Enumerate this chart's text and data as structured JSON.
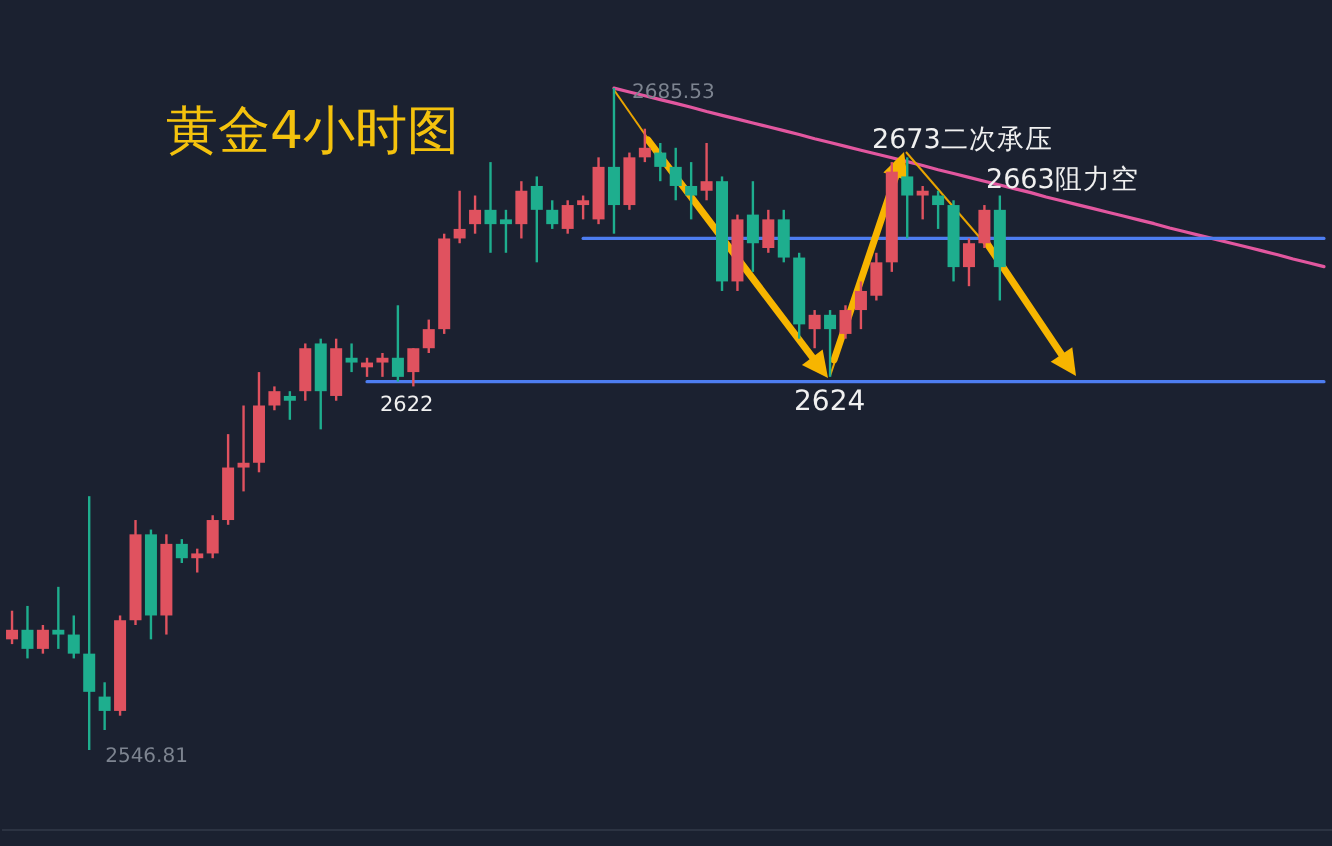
{
  "chart_data": {
    "type": "candlestick",
    "title": "黄金4小时图",
    "categories": [
      null,
      null,
      null,
      null,
      null,
      null,
      null,
      null,
      null,
      null,
      null,
      null,
      null,
      null,
      null,
      null,
      null,
      null,
      null,
      null,
      null,
      null,
      null,
      null,
      null,
      null,
      null,
      null,
      null,
      null,
      null,
      null,
      null,
      null,
      null,
      null,
      null,
      null,
      null,
      null,
      null,
      null,
      null,
      null,
      null,
      null,
      null,
      null,
      null,
      null,
      null,
      null,
      null,
      null,
      null,
      null,
      null,
      null,
      null,
      null,
      null,
      null,
      null,
      null,
      null,
      null,
      null,
      null,
      null,
      null,
      null,
      null,
      null,
      null,
      null,
      null,
      null,
      null,
      null,
      null,
      null,
      null,
      null,
      null,
      null,
      null
    ],
    "ohlc": [
      [
        2570,
        2576,
        2569,
        2572
      ],
      [
        2572,
        2577,
        2566,
        2568
      ],
      [
        2568,
        2573,
        2567,
        2572
      ],
      [
        2572,
        2581,
        2568,
        2571
      ],
      [
        2571,
        2575,
        2566,
        2567
      ],
      [
        2567,
        2600,
        2546.81,
        2559
      ],
      [
        2558,
        2561,
        2551,
        2555
      ],
      [
        2555,
        2575,
        2554,
        2574
      ],
      [
        2574,
        2595,
        2573,
        2592
      ],
      [
        2592,
        2593,
        2570,
        2575
      ],
      [
        2575,
        2592,
        2571,
        2590
      ],
      [
        2590,
        2591,
        2586,
        2587
      ],
      [
        2587,
        2589,
        2584,
        2588
      ],
      [
        2588,
        2596,
        2587,
        2595
      ],
      [
        2595,
        2613,
        2594,
        2606
      ],
      [
        2606,
        2619,
        2601,
        2607
      ],
      [
        2607,
        2626,
        2605,
        2619
      ],
      [
        2619,
        2623,
        2618,
        2622
      ],
      [
        2621,
        2622,
        2616,
        2620
      ],
      [
        2622,
        2632,
        2620,
        2631
      ],
      [
        2632,
        2633,
        2614,
        2622
      ],
      [
        2621,
        2633,
        2620,
        2631
      ],
      [
        2629,
        2632,
        2626,
        2628
      ],
      [
        2627,
        2629,
        2625,
        2628
      ],
      [
        2628,
        2630,
        2625,
        2629
      ],
      [
        2629,
        2640,
        2624,
        2625
      ],
      [
        2626,
        2631,
        2623,
        2631
      ],
      [
        2631,
        2637,
        2630,
        2635
      ],
      [
        2635,
        2655,
        2634,
        2654
      ],
      [
        2654,
        2664,
        2653,
        2656
      ],
      [
        2657,
        2663,
        2655,
        2660
      ],
      [
        2660,
        2670,
        2651,
        2657
      ],
      [
        2658,
        2660,
        2651,
        2657
      ],
      [
        2657,
        2666,
        2654,
        2664
      ],
      [
        2665,
        2667,
        2649,
        2660
      ],
      [
        2660,
        2662,
        2656,
        2657
      ],
      [
        2656,
        2662,
        2655,
        2661
      ],
      [
        2661,
        2663,
        2658,
        2662
      ],
      [
        2658,
        2671,
        2657,
        2669
      ],
      [
        2669,
        2685.53,
        2655,
        2661
      ],
      [
        2661,
        2672,
        2660,
        2671
      ],
      [
        2671,
        2677,
        2670,
        2673
      ],
      [
        2672,
        2674,
        2666,
        2669
      ],
      [
        2669,
        2673,
        2662,
        2665
      ],
      [
        2665,
        2670,
        2658,
        2663
      ],
      [
        2664,
        2674,
        2662,
        2666
      ],
      [
        2666,
        2667,
        2643,
        2645
      ],
      [
        2645,
        2659,
        2643,
        2658
      ],
      [
        2659,
        2666,
        2647,
        2653
      ],
      [
        2652,
        2660,
        2651,
        2658
      ],
      [
        2658,
        2660,
        2649,
        2650
      ],
      [
        2650,
        2651,
        2633,
        2636
      ],
      [
        2635,
        2639,
        2631,
        2638
      ],
      [
        2638,
        2639,
        2625,
        2635
      ],
      [
        2634,
        2640,
        2633,
        2639
      ],
      [
        2639,
        2645,
        2635,
        2643
      ],
      [
        2642,
        2651,
        2641,
        2649
      ],
      [
        2649,
        2670,
        2647,
        2668
      ],
      [
        2667,
        2671,
        2654,
        2663
      ],
      [
        2663,
        2665,
        2658,
        2664
      ],
      [
        2663,
        2664,
        2656,
        2661
      ],
      [
        2661,
        2662,
        2645,
        2648
      ],
      [
        2648,
        2654,
        2644,
        2653
      ],
      [
        2653,
        2661,
        2652,
        2660
      ],
      [
        2660,
        2663,
        2641,
        2648
      ],
      null,
      null,
      null,
      null,
      null,
      null,
      null,
      null,
      null,
      null,
      null,
      null,
      null,
      null,
      null,
      null,
      null,
      null,
      null,
      null,
      null
    ],
    "colors": [
      "#e0525f",
      "#1eae8e",
      "#e0525f",
      "#1eae8e",
      "#1eae8e",
      "#1eae8e",
      "#1eae8e",
      "#e0525f",
      "#e0525f",
      "#1eae8e",
      "#e0525f",
      "#1eae8e",
      "#e0525f",
      "#e0525f",
      "#e0525f",
      "#e0525f",
      "#e0525f",
      "#e0525f",
      "#1eae8e",
      "#e0525f",
      "#1eae8e",
      "#e0525f",
      "#1eae8e",
      "#e0525f",
      "#e0525f",
      "#1eae8e",
      "#e0525f",
      "#e0525f",
      "#e0525f",
      "#e0525f",
      "#e0525f",
      "#1eae8e",
      "#1eae8e",
      "#e0525f",
      "#1eae8e",
      "#1eae8e",
      "#e0525f",
      "#e0525f",
      "#e0525f",
      "#1eae8e",
      "#e0525f",
      "#e0525f",
      "#1eae8e",
      "#1eae8e",
      "#1eae8e",
      "#e0525f",
      "#1eae8e",
      "#e0525f",
      "#1eae8e",
      "#e0525f",
      "#1eae8e",
      "#1eae8e",
      "#e0525f",
      "#1eae8e",
      "#e0525f",
      "#e0525f",
      "#e0525f",
      "#e0525f",
      "#1eae8e",
      "#e0525f",
      "#1eae8e",
      "#1eae8e",
      "#e0525f",
      "#e0525f",
      "#1eae8e",
      null,
      null,
      null,
      null,
      null,
      null,
      null,
      null,
      null,
      null,
      null,
      null,
      null,
      null,
      null,
      null,
      null,
      null,
      null,
      null,
      null
    ],
    "series": [
      {
        "type": "line",
        "color": "#e2579f",
        "values": [
          null,
          null,
          null,
          null,
          null,
          null,
          null,
          null,
          null,
          null,
          null,
          null,
          null,
          null,
          null,
          null,
          null,
          null,
          null,
          null,
          null,
          null,
          null,
          null,
          null,
          null,
          null,
          null,
          null,
          null,
          null,
          null,
          null,
          null,
          null,
          null,
          null,
          null,
          null,
          2685.5,
          2684.7,
          2683.9,
          2683.1,
          2682.3,
          2681.5,
          2680.6,
          2679.8,
          2679.0,
          2678.2,
          2677.4,
          2676.6,
          2675.8,
          2674.9,
          2674.1,
          2673.3,
          2672.5,
          2671.7,
          2670.9,
          2670.1,
          2669.3,
          2668.4,
          2667.6,
          2666.8,
          2666.0,
          2665.2,
          2664.4,
          2663.6,
          2662.7,
          2661.9,
          2661.1,
          2660.3,
          2659.5,
          2658.7,
          2657.9,
          2657.1,
          2656.2,
          2655.4,
          2654.6,
          2653.8,
          2653.0,
          2652.2,
          2651.4,
          2650.6,
          2649.7,
          2648.9,
          2648.1
        ]
      },
      {
        "type": "line",
        "color": "#4d7df0",
        "values": [
          null,
          null,
          null,
          null,
          null,
          null,
          null,
          null,
          null,
          null,
          null,
          null,
          null,
          null,
          null,
          null,
          null,
          null,
          null,
          null,
          null,
          null,
          null,
          null,
          null,
          null,
          null,
          null,
          null,
          null,
          null,
          null,
          null,
          null,
          null,
          null,
          null,
          2654,
          2654,
          2654,
          2654,
          2654,
          2654,
          2654,
          2654,
          2654,
          2654,
          2654,
          2654,
          2654,
          2654,
          2654,
          2654,
          2654,
          2654,
          2654,
          2654,
          2654,
          2654,
          2654,
          2654,
          2654,
          2654,
          2654,
          2654,
          2654,
          2654,
          2654,
          2654,
          2654,
          2654,
          2654,
          2654,
          2654,
          2654,
          2654,
          2654,
          2654,
          2654,
          2654,
          2654,
          2654,
          2654,
          2654,
          2654,
          2654
        ]
      },
      {
        "type": "line",
        "color": "#4d7df0",
        "values": [
          null,
          null,
          null,
          null,
          null,
          null,
          null,
          null,
          null,
          null,
          null,
          null,
          null,
          null,
          null,
          null,
          null,
          null,
          null,
          null,
          null,
          null,
          null,
          2624,
          2624,
          2624,
          2624,
          2624,
          2624,
          2624,
          2624,
          2624,
          2624,
          2624,
          2624,
          2624,
          2624,
          2624,
          2624,
          2624,
          2624,
          2624,
          2624,
          2624,
          2624,
          2624,
          2624,
          2624,
          2624,
          2624,
          2624,
          2624,
          2624,
          2624,
          2624,
          2624,
          2624,
          2624,
          2624,
          2624,
          2624,
          2624,
          2624,
          2624,
          2624,
          2624,
          2624,
          2624,
          2624,
          2624,
          2624,
          2624,
          2624,
          2624,
          2624,
          2624,
          2624,
          2624,
          2624,
          2624,
          2624,
          2624,
          2624,
          2624,
          2624,
          2624
        ]
      }
    ],
    "annotations": [
      "2685.53",
      "2546.81",
      {
        "text": "2622",
        "y": 2622
      },
      {
        "text": "2624",
        "y": 2624
      },
      "2673二次承压",
      {
        "text": "2663阻力空",
        "y": 2663
      }
    ]
  }
}
